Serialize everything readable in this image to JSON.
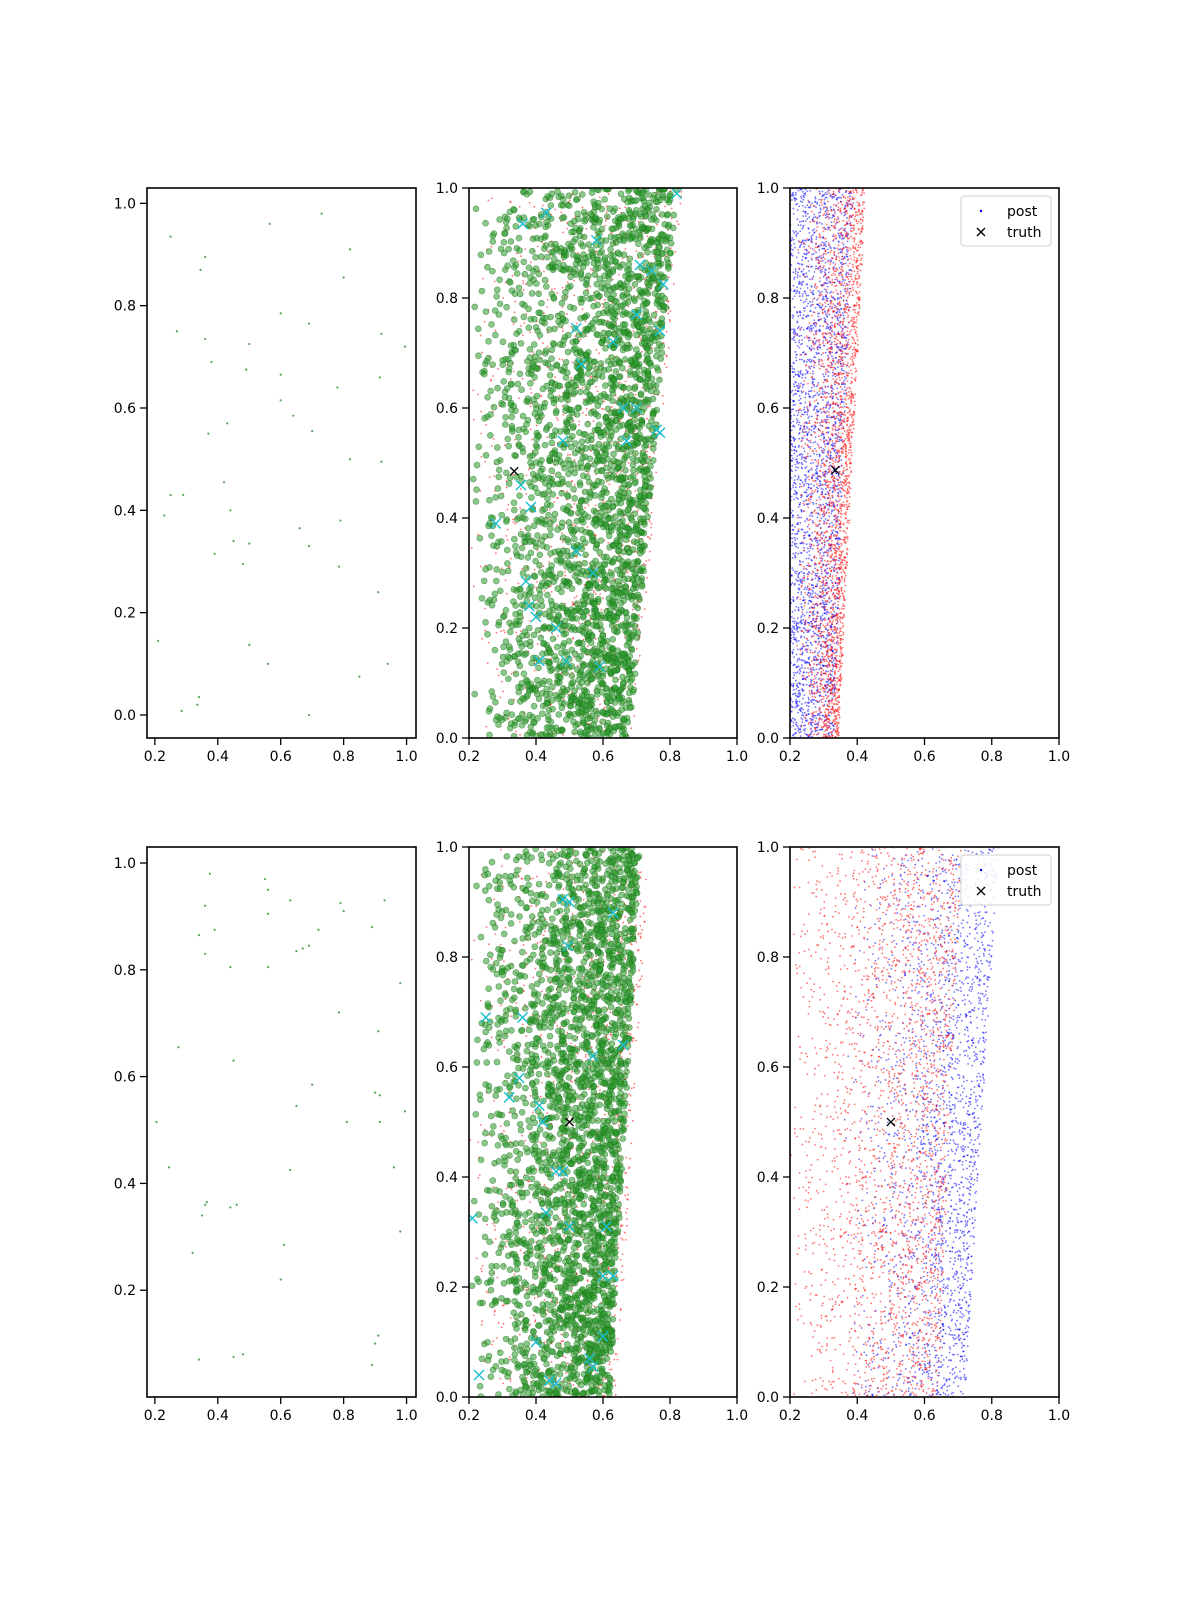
{
  "figure": {
    "layout": "2 rows x 3 columns of scatter panels",
    "background": "#ffffff"
  },
  "colors": {
    "green_points": "#2e8b2e",
    "red_points": "#ff0000",
    "blue_points": "#0000ff",
    "cyan_markers": "#17becf",
    "truth_marker": "#000000"
  },
  "legend": {
    "post_label": "post",
    "truth_label": "truth",
    "placement": "upper-right of right-column panels"
  },
  "chart_data": [
    {
      "id": "r1c1",
      "type": "scatter",
      "title": "",
      "xlabel": "",
      "ylabel": "",
      "xlim": [
        0.175,
        1.03
      ],
      "ylim": [
        -0.045,
        1.03
      ],
      "xticks": [
        "0.2",
        "0.4",
        "0.6",
        "0.8",
        "1.0"
      ],
      "yticks": [
        "0.0",
        "0.2",
        "0.4",
        "0.6",
        "0.8",
        "1.0"
      ],
      "series": [
        {
          "role": "sparse green points",
          "color": "#2e8b2e",
          "points": [
            [
              0.25,
              0.935
            ],
            [
              0.36,
              0.895
            ],
            [
              0.345,
              0.87
            ],
            [
              0.565,
              0.96
            ],
            [
              0.73,
              0.98
            ],
            [
              0.82,
              0.91
            ],
            [
              0.8,
              0.855
            ],
            [
              0.27,
              0.75
            ],
            [
              0.36,
              0.735
            ],
            [
              0.5,
              0.725
            ],
            [
              0.6,
              0.785
            ],
            [
              0.69,
              0.765
            ],
            [
              0.92,
              0.745
            ],
            [
              0.995,
              0.72
            ],
            [
              0.38,
              0.69
            ],
            [
              0.49,
              0.675
            ],
            [
              0.6,
              0.665
            ],
            [
              0.915,
              0.66
            ],
            [
              0.78,
              0.64
            ],
            [
              0.6,
              0.615
            ],
            [
              0.64,
              0.585
            ],
            [
              0.43,
              0.57
            ],
            [
              0.7,
              0.555
            ],
            [
              0.37,
              0.55
            ],
            [
              0.82,
              0.5
            ],
            [
              0.92,
              0.495
            ],
            [
              0.42,
              0.455
            ],
            [
              0.25,
              0.43
            ],
            [
              0.29,
              0.43
            ],
            [
              0.23,
              0.39
            ],
            [
              0.44,
              0.4
            ],
            [
              0.79,
              0.38
            ],
            [
              0.66,
              0.365
            ],
            [
              0.45,
              0.34
            ],
            [
              0.5,
              0.335
            ],
            [
              0.69,
              0.33
            ],
            [
              0.39,
              0.315
            ],
            [
              0.48,
              0.295
            ],
            [
              0.785,
              0.29
            ],
            [
              0.91,
              0.24
            ],
            [
              0.21,
              0.145
            ],
            [
              0.5,
              0.137
            ],
            [
              0.56,
              0.1
            ],
            [
              0.94,
              0.1
            ],
            [
              0.85,
              0.075
            ],
            [
              0.34,
              0.035
            ],
            [
              0.335,
              0.02
            ],
            [
              0.285,
              0.008
            ],
            [
              0.69,
              0.0
            ]
          ]
        }
      ]
    },
    {
      "id": "r1c2",
      "type": "scatter",
      "title": "",
      "xlabel": "",
      "ylabel": "",
      "xlim": [
        0.2,
        1.0
      ],
      "ylim": [
        0.0,
        1.0
      ],
      "xticks": [
        "0.2",
        "0.4",
        "0.6",
        "0.8",
        "1.0"
      ],
      "yticks": [
        "0.0",
        "0.2",
        "0.4",
        "0.6",
        "0.8",
        "1.0"
      ],
      "series": [
        {
          "role": "red dots",
          "color": "#ff0000",
          "distribution": {
            "n": 1200,
            "x_left": 0.2,
            "x_right_at_y0": 0.69,
            "x_right_at_y1": 0.84,
            "skew": 0.55
          }
        },
        {
          "role": "green circles",
          "color": "#2e8b2e",
          "distribution": {
            "n": 2600,
            "x_left": 0.21,
            "x_right_at_y0": 0.68,
            "x_right_at_y1": 0.82,
            "skew": 0.55
          }
        },
        {
          "role": "cyan x markers",
          "color": "#17becf",
          "points": [
            [
              0.36,
              0.935
            ],
            [
              0.43,
              0.955
            ],
            [
              0.58,
              0.905
            ],
            [
              0.71,
              0.86
            ],
            [
              0.745,
              0.85
            ],
            [
              0.78,
              0.825
            ],
            [
              0.52,
              0.745
            ],
            [
              0.63,
              0.72
            ],
            [
              0.535,
              0.68
            ],
            [
              0.77,
              0.74
            ],
            [
              0.7,
              0.77
            ],
            [
              0.48,
              0.54
            ],
            [
              0.77,
              0.555
            ],
            [
              0.76,
              0.56
            ],
            [
              0.355,
              0.46
            ],
            [
              0.385,
              0.42
            ],
            [
              0.28,
              0.39
            ],
            [
              0.52,
              0.34
            ],
            [
              0.57,
              0.3
            ],
            [
              0.37,
              0.285
            ],
            [
              0.38,
              0.24
            ],
            [
              0.4,
              0.22
            ],
            [
              0.46,
              0.2
            ],
            [
              0.59,
              0.13
            ],
            [
              0.49,
              0.14
            ],
            [
              0.82,
              0.99
            ],
            [
              0.66,
              0.6
            ],
            [
              0.7,
              0.6
            ],
            [
              0.41,
              0.14
            ],
            [
              0.67,
              0.54
            ]
          ]
        },
        {
          "role": "truth",
          "color": "#000000",
          "points": [
            [
              0.335,
              0.485
            ]
          ]
        }
      ]
    },
    {
      "id": "r1c3",
      "type": "scatter",
      "title": "",
      "xlabel": "",
      "ylabel": "",
      "xlim": [
        0.2,
        1.0
      ],
      "ylim": [
        0.0,
        1.0
      ],
      "xticks": [
        "0.2",
        "0.4",
        "0.6",
        "0.8",
        "1.0"
      ],
      "yticks": [
        "0.0",
        "0.2",
        "0.4",
        "0.6",
        "0.8",
        "1.0"
      ],
      "legend": [
        "post",
        "truth"
      ],
      "series": [
        {
          "role": "post (blue)",
          "name": "post",
          "color": "#0000ff",
          "distribution": {
            "n": 2600,
            "x_left": 0.2,
            "x_right_at_y0": 0.33,
            "x_right_at_y1": 0.39,
            "skew": 1.0
          }
        },
        {
          "role": "red dots",
          "color": "#ff0000",
          "distribution": {
            "n": 2400,
            "x_left": 0.215,
            "x_right_at_y0": 0.345,
            "x_right_at_y1": 0.425,
            "skew": 0.45
          }
        },
        {
          "role": "truth",
          "name": "truth",
          "color": "#000000",
          "points": [
            [
              0.335,
              0.487
            ]
          ]
        }
      ]
    },
    {
      "id": "r2c1",
      "type": "scatter",
      "title": "",
      "xlabel": "",
      "ylabel": "",
      "xlim": [
        0.175,
        1.03
      ],
      "ylim": [
        0.0,
        1.03
      ],
      "xticks": [
        "0.2",
        "0.4",
        "0.6",
        "0.8",
        "1.0"
      ],
      "yticks": [
        "0.2",
        "0.4",
        "0.6",
        "0.8",
        "1.0"
      ],
      "series": [
        {
          "role": "sparse green points",
          "color": "#2e8b2e",
          "points": [
            [
              0.375,
              0.98
            ],
            [
              0.55,
              0.97
            ],
            [
              0.56,
              0.95
            ],
            [
              0.36,
              0.92
            ],
            [
              0.56,
              0.905
            ],
            [
              0.63,
              0.93
            ],
            [
              0.79,
              0.925
            ],
            [
              0.8,
              0.91
            ],
            [
              0.93,
              0.93
            ],
            [
              0.34,
              0.865
            ],
            [
              0.39,
              0.875
            ],
            [
              0.72,
              0.875
            ],
            [
              0.89,
              0.88
            ],
            [
              0.36,
              0.83
            ],
            [
              0.65,
              0.835
            ],
            [
              0.67,
              0.84
            ],
            [
              0.69,
              0.845
            ],
            [
              0.44,
              0.805
            ],
            [
              0.56,
              0.805
            ],
            [
              0.98,
              0.775
            ],
            [
              0.785,
              0.72
            ],
            [
              0.91,
              0.685
            ],
            [
              0.275,
              0.655
            ],
            [
              0.45,
              0.63
            ],
            [
              0.7,
              0.585
            ],
            [
              0.9,
              0.57
            ],
            [
              0.915,
              0.565
            ],
            [
              0.65,
              0.545
            ],
            [
              0.995,
              0.535
            ],
            [
              0.205,
              0.515
            ],
            [
              0.81,
              0.515
            ],
            [
              0.915,
              0.515
            ],
            [
              0.96,
              0.43
            ],
            [
              0.245,
              0.43
            ],
            [
              0.63,
              0.425
            ],
            [
              0.36,
              0.36
            ],
            [
              0.365,
              0.365
            ],
            [
              0.44,
              0.355
            ],
            [
              0.46,
              0.36
            ],
            [
              0.35,
              0.34
            ],
            [
              0.98,
              0.31
            ],
            [
              0.61,
              0.285
            ],
            [
              0.32,
              0.27
            ],
            [
              0.6,
              0.22
            ],
            [
              0.91,
              0.115
            ],
            [
              0.9,
              0.1
            ],
            [
              0.34,
              0.07
            ],
            [
              0.45,
              0.075
            ],
            [
              0.48,
              0.08
            ],
            [
              0.89,
              0.06
            ]
          ]
        }
      ]
    },
    {
      "id": "r2c2",
      "type": "scatter",
      "title": "",
      "xlabel": "",
      "ylabel": "",
      "xlim": [
        0.2,
        1.0
      ],
      "ylim": [
        0.0,
        1.0
      ],
      "xticks": [
        "0.2",
        "0.4",
        "0.6",
        "0.8",
        "1.0"
      ],
      "yticks": [
        "0.0",
        "0.2",
        "0.4",
        "0.6",
        "0.8",
        "1.0"
      ],
      "series": [
        {
          "role": "red dots",
          "color": "#ff0000",
          "distribution": {
            "n": 1200,
            "x_left": 0.2,
            "x_right_at_y0": 0.64,
            "x_right_at_y1": 0.74,
            "skew": 0.55
          }
        },
        {
          "role": "green circles",
          "color": "#2e8b2e",
          "distribution": {
            "n": 2600,
            "x_left": 0.205,
            "x_right_at_y0": 0.62,
            "x_right_at_y1": 0.71,
            "skew": 0.5
          }
        },
        {
          "role": "cyan x markers",
          "color": "#17becf",
          "points": [
            [
              0.48,
              0.905
            ],
            [
              0.5,
              0.9
            ],
            [
              0.495,
              0.82
            ],
            [
              0.63,
              0.88
            ],
            [
              0.25,
              0.69
            ],
            [
              0.36,
              0.69
            ],
            [
              0.32,
              0.545
            ],
            [
              0.35,
              0.58
            ],
            [
              0.41,
              0.53
            ],
            [
              0.42,
              0.5
            ],
            [
              0.46,
              0.41
            ],
            [
              0.48,
              0.41
            ],
            [
              0.43,
              0.335
            ],
            [
              0.5,
              0.31
            ],
            [
              0.61,
              0.31
            ],
            [
              0.63,
              0.22
            ],
            [
              0.6,
              0.22
            ],
            [
              0.21,
              0.325
            ],
            [
              0.4,
              0.1
            ],
            [
              0.56,
              0.07
            ],
            [
              0.57,
              0.055
            ],
            [
              0.23,
              0.04
            ],
            [
              0.44,
              0.03
            ],
            [
              0.46,
              0.025
            ],
            [
              0.6,
              0.11
            ],
            [
              0.66,
              0.64
            ],
            [
              0.57,
              0.62
            ]
          ]
        },
        {
          "role": "truth",
          "color": "#000000",
          "points": [
            [
              0.5,
              0.5
            ]
          ]
        }
      ]
    },
    {
      "id": "r2c3",
      "type": "scatter",
      "title": "",
      "xlabel": "",
      "ylabel": "",
      "xlim": [
        0.2,
        1.0
      ],
      "ylim": [
        0.0,
        1.0
      ],
      "xticks": [
        "0.2",
        "0.4",
        "0.6",
        "0.8",
        "1.0"
      ],
      "yticks": [
        "0.0",
        "0.2",
        "0.4",
        "0.6",
        "0.8",
        "1.0"
      ],
      "legend": [
        "post",
        "truth"
      ],
      "series": [
        {
          "role": "post (blue)",
          "name": "post",
          "color": "#0000ff",
          "distribution": {
            "n": 2200,
            "x_left": 0.33,
            "x_right_at_y0": 0.72,
            "x_right_at_y1": 0.82,
            "skew": 0.4
          }
        },
        {
          "role": "red dots",
          "color": "#ff0000",
          "distribution": {
            "n": 2400,
            "x_left": 0.2,
            "x_right_at_y0": 0.64,
            "x_right_at_y1": 0.71,
            "skew": 0.6
          }
        },
        {
          "role": "truth",
          "name": "truth",
          "color": "#000000",
          "points": [
            [
              0.5,
              0.5
            ]
          ]
        }
      ]
    }
  ]
}
